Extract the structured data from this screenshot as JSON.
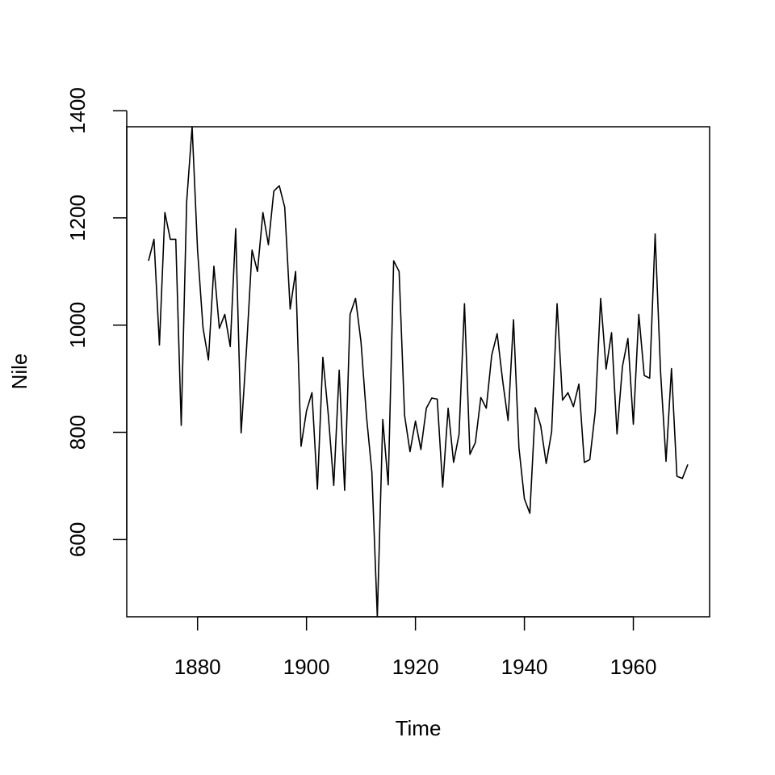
{
  "chart_data": {
    "type": "line",
    "title": "",
    "xlabel": "Time",
    "ylabel": "Nile",
    "xlim": [
      1867,
      1974
    ],
    "ylim": [
      456,
      1370
    ],
    "x_ticks": [
      1880,
      1900,
      1920,
      1940,
      1960
    ],
    "y_ticks": [
      600,
      800,
      1000,
      1200,
      1400
    ],
    "grid": false,
    "legend": "none",
    "colors": {
      "line": "#000000",
      "axis": "#000000",
      "background": "#ffffff"
    },
    "series": [
      {
        "x": [
          1871,
          1872,
          1873,
          1874,
          1875,
          1876,
          1877,
          1878,
          1879,
          1880,
          1881,
          1882,
          1883,
          1884,
          1885,
          1886,
          1887,
          1888,
          1889,
          1890,
          1891,
          1892,
          1893,
          1894,
          1895,
          1896,
          1897,
          1898,
          1899,
          1900,
          1901,
          1902,
          1903,
          1904,
          1905,
          1906,
          1907,
          1908,
          1909,
          1910,
          1911,
          1912,
          1913,
          1914,
          1915,
          1916,
          1917,
          1918,
          1919,
          1920,
          1921,
          1922,
          1923,
          1924,
          1925,
          1926,
          1927,
          1928,
          1929,
          1930,
          1931,
          1932,
          1933,
          1934,
          1935,
          1936,
          1937,
          1938,
          1939,
          1940,
          1941,
          1942,
          1943,
          1944,
          1945,
          1946,
          1947,
          1948,
          1949,
          1950,
          1951,
          1952,
          1953,
          1954,
          1955,
          1956,
          1957,
          1958,
          1959,
          1960,
          1961,
          1962,
          1963,
          1964,
          1965,
          1966,
          1967,
          1968,
          1969,
          1970
        ],
        "values": [
          1120,
          1160,
          963,
          1210,
          1160,
          1160,
          813,
          1230,
          1370,
          1140,
          995,
          935,
          1110,
          994,
          1020,
          960,
          1180,
          799,
          958,
          1140,
          1100,
          1210,
          1150,
          1250,
          1260,
          1220,
          1030,
          1100,
          774,
          840,
          874,
          694,
          940,
          833,
          701,
          916,
          692,
          1020,
          1050,
          969,
          831,
          726,
          456,
          824,
          702,
          1120,
          1100,
          832,
          764,
          821,
          768,
          845,
          864,
          862,
          698,
          845,
          744,
          796,
          1040,
          759,
          781,
          865,
          845,
          944,
          984,
          897,
          822,
          1010,
          771,
          676,
          649,
          846,
          812,
          742,
          801,
          1040,
          860,
          874,
          848,
          890,
          744,
          749,
          838,
          1050,
          918,
          986,
          797,
          923,
          975,
          815,
          1020,
          906,
          901,
          1170,
          912,
          746,
          919,
          718,
          714,
          740
        ]
      }
    ]
  }
}
